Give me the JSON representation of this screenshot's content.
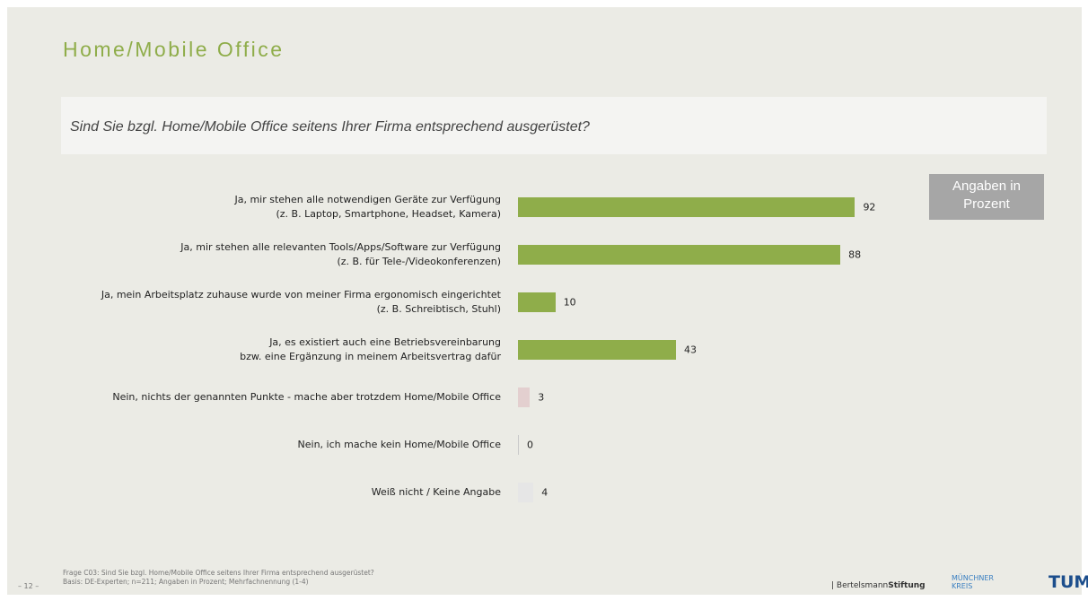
{
  "header": {
    "title": "Home/Mobile Office",
    "question": "Sind Sie bzgl. Home/Mobile Office seitens Ihrer Firma entsprechend ausgerüstet?",
    "unit_box": "Angaben in\nProzent"
  },
  "chart_data": {
    "type": "bar",
    "orientation": "horizontal",
    "categories": [
      "Ja, mir stehen alle notwendigen Geräte zur Verfügung\n(z. B. Laptop, Smartphone, Headset, Kamera)",
      "Ja, mir stehen alle relevanten Tools/Apps/Software zur Verfügung\n(z. B. für Tele-/Videokonferenzen)",
      "Ja, mein Arbeitsplatz zuhause wurde von meiner Firma ergonomisch eingerichtet\n(z. B. Schreibtisch, Stuhl)",
      "Ja, es existiert auch eine Betriebsvereinbarung\nbzw. eine Ergänzung in meinem Arbeitsvertrag dafür",
      "Nein, nichts der genannten Punkte - mache aber trotzdem Home/Mobile Office",
      "Nein, ich mache kein Home/Mobile Office",
      "Weiß nicht / Keine Angabe"
    ],
    "values": [
      92,
      88,
      10,
      43,
      3,
      0,
      4
    ],
    "colors": [
      "#8fad4a",
      "#8fad4a",
      "#8fad4a",
      "#8fad4a",
      "#e3cfcf",
      "#c9c9c9",
      "#e6e6e6"
    ],
    "xlim": [
      0,
      100
    ]
  },
  "footer": {
    "page": "– 12 –",
    "note": "Frage C03: Sind Sie bzgl. Home/Mobile Office seitens Ihrer Firma entsprechend ausgerüstet?\nBasis: DE-Experten; n=211; Angaben in Prozent; Mehrfachnennung (1-4)",
    "logo1a": "| Bertelsmann",
    "logo1b": "Stiftung",
    "logo2": "MÜNCHNER\nKREIS",
    "logo3": "TUM"
  }
}
